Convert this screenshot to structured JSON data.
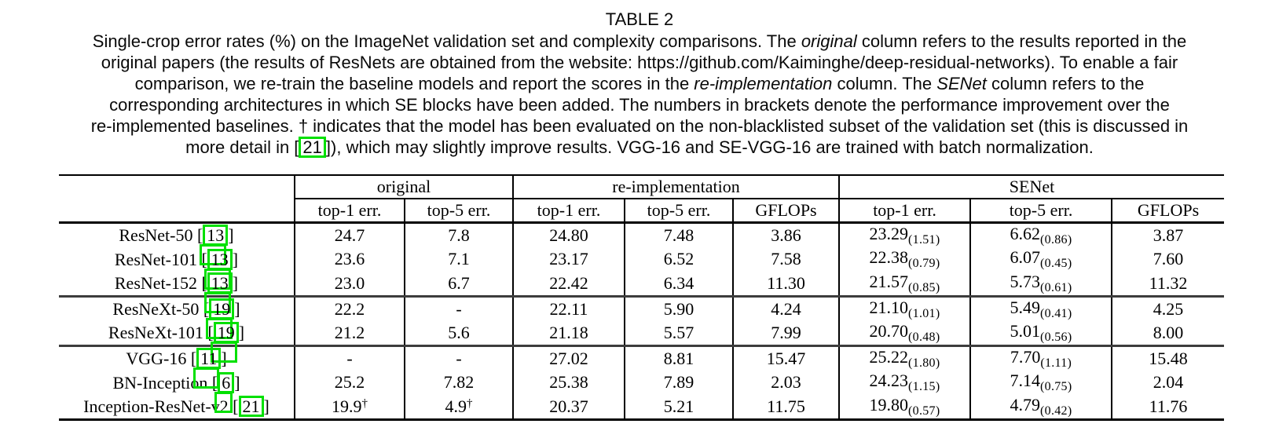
{
  "colors": {
    "citation_box": "#00e000",
    "rule": "#000000",
    "separator_rule": "#3c3c3c"
  },
  "caption": {
    "title": "TABLE 2",
    "lines": [
      [
        {
          "t": "Single-crop error rates (%) on the ImageNet validation set and complexity comparisons. The "
        },
        {
          "t": "original",
          "style": "italic"
        },
        {
          "t": " column refers to the results reported in the"
        }
      ],
      [
        {
          "t": "original papers (the results of ResNets are obtained from the website: https://github.com/Kaiminghe/deep-residual-networks). To enable a fair"
        }
      ],
      [
        {
          "t": "comparison, we re-train the baseline models and report the scores in the "
        },
        {
          "t": "re-implementation",
          "style": "italic"
        },
        {
          "t": " column. The "
        },
        {
          "t": "SENet",
          "style": "italic"
        },
        {
          "t": " column refers to the"
        }
      ],
      [
        {
          "t": "corresponding architectures in which SE blocks have been added. The numbers in brackets denote the performance improvement over the"
        }
      ],
      [
        {
          "t": "re-implemented baselines. † indicates that the model has been evaluated on the non-blacklisted subset of the validation set (this is discussed in"
        }
      ],
      [
        {
          "t": "more detail in ["
        },
        {
          "t": "21",
          "style": "linkbox"
        },
        {
          "t": "]), which may slightly improve results. VGG-16 and SE-VGG-16 are trained with batch normalization."
        }
      ]
    ]
  },
  "table": {
    "groups": [
      {
        "label": "original",
        "span": 2
      },
      {
        "label": "re-implementation",
        "span": 3
      },
      {
        "label": "SENet",
        "span": 3
      }
    ],
    "subheaders": [
      "top-1 err.",
      "top-5 err.",
      "top-1 err.",
      "top-5 err.",
      "GFLOPs",
      "top-1 err.",
      "top-5 err.",
      "GFLOPs"
    ],
    "rows": [
      {
        "label": "ResNet-50",
        "cite": "13",
        "dup": true,
        "sep": false,
        "cells": [
          {
            "v": "24.7"
          },
          {
            "v": "7.8"
          },
          {
            "v": "24.80"
          },
          {
            "v": "7.48"
          },
          {
            "v": "3.86"
          },
          {
            "v": "23.29",
            "sub": "(1.51)"
          },
          {
            "v": "6.62",
            "sub": "(0.86)"
          },
          {
            "v": "3.87"
          }
        ]
      },
      {
        "label": "ResNet-101",
        "cite": "13",
        "dup": true,
        "sep": false,
        "cells": [
          {
            "v": "23.6"
          },
          {
            "v": "7.1"
          },
          {
            "v": "23.17"
          },
          {
            "v": "6.52"
          },
          {
            "v": "7.58"
          },
          {
            "v": "22.38",
            "sub": "(0.79)"
          },
          {
            "v": "6.07",
            "sub": "(0.45)"
          },
          {
            "v": "7.60"
          }
        ]
      },
      {
        "label": "ResNet-152",
        "cite": "13",
        "dup": true,
        "sep": false,
        "cells": [
          {
            "v": "23.0"
          },
          {
            "v": "6.7"
          },
          {
            "v": "22.42"
          },
          {
            "v": "6.34"
          },
          {
            "v": "11.30"
          },
          {
            "v": "21.57",
            "sub": "(0.85)"
          },
          {
            "v": "5.73",
            "sub": "(0.61)"
          },
          {
            "v": "11.32"
          }
        ]
      },
      {
        "label": "ResNeXt-50",
        "cite": "19",
        "dup": true,
        "sep": true,
        "cells": [
          {
            "v": "22.2"
          },
          {
            "v": "-"
          },
          {
            "v": "22.11"
          },
          {
            "v": "5.90"
          },
          {
            "v": "4.24"
          },
          {
            "v": "21.10",
            "sub": "(1.01)"
          },
          {
            "v": "5.49",
            "sub": "(0.41)"
          },
          {
            "v": "4.25"
          }
        ]
      },
      {
        "label": "ResNeXt-101",
        "cite": "19",
        "dup": true,
        "sep": false,
        "cells": [
          {
            "v": "21.2"
          },
          {
            "v": "5.6"
          },
          {
            "v": "21.18"
          },
          {
            "v": "5.57"
          },
          {
            "v": "7.99"
          },
          {
            "v": "20.70",
            "sub": "(0.48)"
          },
          {
            "v": "5.01",
            "sub": "(0.56)"
          },
          {
            "v": "8.00"
          }
        ]
      },
      {
        "label": "VGG-16",
        "cite": "11",
        "dup": true,
        "sep": true,
        "cells": [
          {
            "v": "-"
          },
          {
            "v": "-"
          },
          {
            "v": "27.02"
          },
          {
            "v": "8.81"
          },
          {
            "v": "15.47"
          },
          {
            "v": "25.22",
            "sub": "(1.80)"
          },
          {
            "v": "7.70",
            "sub": "(1.11)"
          },
          {
            "v": "15.48"
          }
        ]
      },
      {
        "label": "BN-Inception",
        "cite": "6",
        "dup": true,
        "sep": false,
        "cells": [
          {
            "v": "25.2"
          },
          {
            "v": "7.82"
          },
          {
            "v": "25.38"
          },
          {
            "v": "7.89"
          },
          {
            "v": "2.03"
          },
          {
            "v": "24.23",
            "sub": "(1.15)"
          },
          {
            "v": "7.14",
            "sub": "(0.75)"
          },
          {
            "v": "2.04"
          }
        ]
      },
      {
        "label": "Inception-ResNet-v2",
        "cite": "21",
        "dup": false,
        "sep": false,
        "cells": [
          {
            "v": "19.9",
            "sup": "†"
          },
          {
            "v": "4.9",
            "sup": "†"
          },
          {
            "v": "20.37"
          },
          {
            "v": "5.21"
          },
          {
            "v": "11.75"
          },
          {
            "v": "19.80",
            "sub": "(0.57)"
          },
          {
            "v": "4.79",
            "sub": "(0.42)"
          },
          {
            "v": "11.76"
          }
        ]
      }
    ]
  }
}
